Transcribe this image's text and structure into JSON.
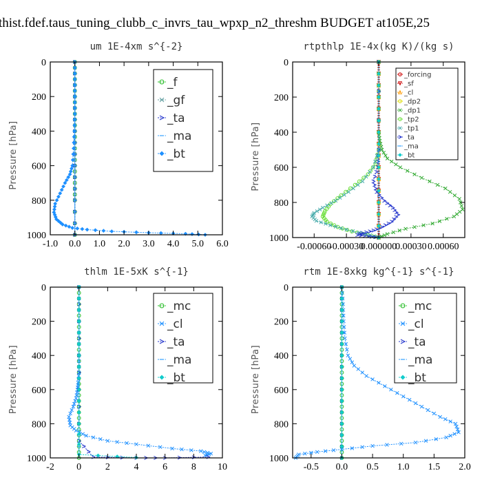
{
  "page_title": "thist.fdef.taus_tuning_clubb_c_invrs_tau_wpxp_n2_threshm  BUDGET at105E,25",
  "chart_data": [
    {
      "type": "line",
      "title": "um  1E-4xm s^{-2}",
      "ylabel": "Pressure [hPa]",
      "ylim": [
        1000,
        0
      ],
      "xlim": [
        -1.0,
        6.0
      ],
      "xticks": [
        "-1.0",
        "0.0",
        "1.0",
        "2.0",
        "3.0",
        "4.0",
        "5.0",
        "6.0"
      ],
      "xtick_values": [
        -1,
        0,
        1,
        2,
        3,
        4,
        5,
        6
      ],
      "yticks": [
        "0",
        "200",
        "400",
        "600",
        "800",
        "1000"
      ],
      "ytick_values": [
        0,
        200,
        400,
        600,
        800,
        1000
      ],
      "legend": "top-right",
      "legend_size": "large",
      "series": [
        {
          "name": "_f",
          "color": "#22bb22",
          "marker": "o",
          "x": [
            0,
            0,
            0,
            0,
            0,
            0,
            0,
            0,
            0,
            0
          ],
          "y": [
            0,
            100,
            200,
            300,
            400,
            500,
            600,
            700,
            800,
            1000
          ]
        },
        {
          "name": "_gf",
          "color": "#5f9ea0",
          "marker": "x",
          "x": [
            0,
            0,
            0,
            0,
            0,
            0,
            0,
            0,
            0,
            0
          ],
          "y": [
            0,
            100,
            200,
            300,
            400,
            500,
            600,
            700,
            800,
            1000
          ]
        },
        {
          "name": "_ta",
          "color": "#2233cc",
          "marker": ">",
          "x": [
            0,
            0,
            0,
            0,
            0,
            0
          ],
          "y": [
            0,
            200,
            400,
            600,
            800,
            1000
          ]
        },
        {
          "name": "_ma",
          "color": "#33a0ff",
          "marker": "-",
          "x": [
            0,
            0,
            0,
            0,
            0,
            0
          ],
          "y": [
            0,
            200,
            400,
            600,
            800,
            1000
          ]
        },
        {
          "name": "_bt",
          "color": "#1e90ff",
          "marker": "d",
          "x": [
            0.0,
            0.0,
            0.0,
            0.0,
            -0.02,
            -0.05,
            -0.1,
            -0.2,
            -0.4,
            -0.6,
            -0.8,
            -0.85,
            -0.75,
            -0.5,
            -0.1,
            0.5,
            1.5,
            3.0,
            4.5,
            5.3
          ],
          "y": [
            0,
            100,
            200,
            300,
            400,
            500,
            600,
            650,
            700,
            760,
            820,
            870,
            910,
            940,
            960,
            970,
            980,
            988,
            994,
            1000
          ]
        }
      ]
    },
    {
      "type": "line",
      "title": "rtpthlp  1E-4x(kg K)/(kg s)",
      "ylabel": "Pressure [hPa]",
      "ylim": [
        1000,
        0
      ],
      "xlim": [
        -0.0008,
        0.0008
      ],
      "xticks": [
        "-0.00060",
        "-0.00030",
        "0.000000",
        "0.00030",
        "0.00060"
      ],
      "xtick_values": [
        -0.0006,
        -0.0003,
        0.0,
        0.0003,
        0.0006
      ],
      "yticks": [
        "0",
        "200",
        "400",
        "600",
        "800",
        "1000"
      ],
      "ytick_values": [
        0,
        200,
        400,
        600,
        800,
        1000
      ],
      "legend": "top-right",
      "legend_size": "small",
      "series": [
        {
          "name": "_forcing",
          "color": "#cc0000",
          "marker": "o",
          "x": [
            0,
            0,
            0,
            0,
            0,
            0
          ],
          "y": [
            0,
            200,
            400,
            600,
            800,
            1000
          ]
        },
        {
          "name": "_sf",
          "color": "#cc0000",
          "marker": "v",
          "x": [
            0,
            0,
            0,
            0,
            0,
            0
          ],
          "y": [
            0,
            200,
            400,
            600,
            800,
            1000
          ]
        },
        {
          "name": "_cl",
          "color": "#ff9900",
          "marker": "^",
          "x": [
            0,
            0,
            0,
            0,
            0,
            0
          ],
          "y": [
            0,
            200,
            400,
            600,
            800,
            1000
          ]
        },
        {
          "name": "_dp2",
          "color": "#dddd00",
          "marker": "o",
          "x": [
            0,
            0,
            0,
            0,
            0,
            0
          ],
          "y": [
            0,
            200,
            400,
            600,
            800,
            1000
          ]
        },
        {
          "name": "_dp1",
          "color": "#33aa33",
          "marker": "x",
          "x": [
            0.0,
            0.0,
            0.0,
            1e-05,
            3e-05,
            8e-05,
            0.0002,
            0.0004,
            0.00062,
            0.00075,
            0.00078,
            0.0007,
            0.0005,
            0.00025,
            8e-05,
            0.0
          ],
          "y": [
            0,
            200,
            400,
            450,
            500,
            550,
            600,
            660,
            720,
            780,
            840,
            880,
            920,
            950,
            980,
            1000
          ]
        },
        {
          "name": "_tp2",
          "color": "#66dd33",
          "marker": "o",
          "x": [
            0.0,
            0.0,
            -3e-05,
            -0.0001,
            -0.00022,
            -0.00035,
            -0.00045,
            -0.0005,
            -0.00052,
            -0.00048,
            -0.00038,
            -0.00025,
            -0.0001,
            0.0
          ],
          "y": [
            0,
            500,
            580,
            640,
            700,
            760,
            810,
            850,
            880,
            910,
            940,
            965,
            985,
            1000
          ]
        },
        {
          "name": "_tp1",
          "color": "#44aaaa",
          "marker": "x",
          "x": [
            0.0,
            0.0,
            -5e-05,
            -0.00015,
            -0.00028,
            -0.0004,
            -0.00052,
            -0.0006,
            -0.00062,
            -0.00058,
            -0.00045,
            -0.0003,
            -0.00012,
            0.0
          ],
          "y": [
            0,
            500,
            600,
            680,
            740,
            790,
            830,
            860,
            880,
            905,
            930,
            955,
            980,
            1000
          ]
        },
        {
          "name": "_ta",
          "color": "#2233cc",
          "marker": ">",
          "x": [
            0.0,
            0.0,
            -1e-05,
            -5e-05,
            -2e-05,
            5e-05,
            0.00013,
            0.00018,
            0.00012,
            3e-05,
            -5e-05,
            -0.00015,
            -0.0002,
            -0.0001,
            0.0
          ],
          "y": [
            0,
            500,
            600,
            680,
            740,
            790,
            830,
            870,
            910,
            940,
            960,
            975,
            985,
            993,
            1000
          ]
        },
        {
          "name": "_ma",
          "color": "#33a0ff",
          "marker": "-",
          "x": [
            0,
            0,
            0,
            0,
            0,
            0
          ],
          "y": [
            0,
            200,
            400,
            600,
            800,
            1000
          ]
        },
        {
          "name": "_bt",
          "color": "#11cccc",
          "marker": "d",
          "x": [
            0,
            0,
            0,
            0,
            0,
            0
          ],
          "y": [
            0,
            200,
            400,
            600,
            800,
            1000
          ]
        }
      ]
    },
    {
      "type": "line",
      "title": "thlm  1E-5xK s^{-1}",
      "ylabel": "Pressure [hPa]",
      "ylim": [
        1000,
        0
      ],
      "xlim": [
        -2,
        10
      ],
      "xticks": [
        "-2",
        "0",
        "2",
        "4",
        "6",
        "8",
        "10"
      ],
      "xtick_values": [
        -2,
        0,
        2,
        4,
        6,
        8,
        10
      ],
      "yticks": [
        "0",
        "200",
        "400",
        "600",
        "800",
        "1000"
      ],
      "ytick_values": [
        0,
        200,
        400,
        600,
        800,
        1000
      ],
      "legend": "top-right",
      "legend_size": "large",
      "series": [
        {
          "name": "_mc",
          "color": "#22bb22",
          "marker": "o",
          "x": [
            0,
            0,
            0,
            0,
            0,
            0,
            0,
            0,
            0,
            0,
            0
          ],
          "y": [
            0,
            100,
            200,
            300,
            400,
            500,
            600,
            700,
            800,
            900,
            1000
          ]
        },
        {
          "name": "_cl",
          "color": "#1e90ff",
          "marker": "x",
          "x": [
            0.0,
            0.0,
            0.0,
            0.0,
            -0.05,
            -0.1,
            -0.2,
            -0.4,
            -0.7,
            -0.6,
            -0.2,
            0.5,
            2.0,
            4.0,
            6.5,
            8.5,
            9.2,
            8.8
          ],
          "y": [
            0,
            200,
            400,
            500,
            560,
            600,
            650,
            700,
            760,
            810,
            840,
            870,
            900,
            920,
            945,
            960,
            975,
            985
          ]
        },
        {
          "name": "_ta",
          "color": "#2233cc",
          "marker": ">",
          "x": [
            0,
            0,
            0,
            0,
            1.0,
            4.0,
            6.0,
            9.0
          ],
          "y": [
            0,
            300,
            600,
            900,
            995,
            1000,
            1000,
            995
          ]
        },
        {
          "name": "_ma",
          "color": "#33a0ff",
          "marker": "-",
          "x": [
            0,
            0,
            0,
            0,
            0,
            0
          ],
          "y": [
            0,
            200,
            400,
            600,
            800,
            1000
          ]
        },
        {
          "name": "_bt",
          "color": "#11cccc",
          "marker": "d",
          "x": [
            0,
            0,
            0,
            0,
            0,
            0,
            4.0
          ],
          "y": [
            0,
            200,
            400,
            600,
            800,
            980,
            998
          ]
        }
      ]
    },
    {
      "type": "line",
      "title": "rtm  1E-8xkg kg^{-1} s^{-1}",
      "ylabel": "Pressure [hPa]",
      "ylim": [
        1000,
        0
      ],
      "xlim": [
        -0.8,
        2.0
      ],
      "xticks": [
        "-0.5",
        "0.0",
        "0.5",
        "1.0",
        "1.5",
        "2.0"
      ],
      "xtick_values": [
        -0.5,
        0.0,
        0.5,
        1.0,
        1.5,
        2.0
      ],
      "yticks": [
        "0",
        "200",
        "400",
        "600",
        "800",
        "1000"
      ],
      "ytick_values": [
        0,
        200,
        400,
        600,
        800,
        1000
      ],
      "legend": "top-right",
      "legend_size": "large",
      "series": [
        {
          "name": "_mc",
          "color": "#22bb22",
          "marker": "o",
          "x": [
            0,
            0,
            0,
            0,
            0,
            0,
            0,
            0,
            0,
            0,
            0
          ],
          "y": [
            0,
            100,
            200,
            300,
            400,
            500,
            600,
            700,
            800,
            900,
            1000
          ]
        },
        {
          "name": "_cl",
          "color": "#1e90ff",
          "marker": "x",
          "x": [
            0.0,
            0.02,
            0.03,
            0.05,
            0.1,
            0.2,
            0.4,
            0.7,
            1.0,
            1.3,
            1.6,
            1.85,
            1.9,
            1.7,
            1.2,
            0.5,
            0.0,
            -0.4,
            -0.7,
            -0.75
          ],
          "y": [
            0,
            100,
            200,
            300,
            400,
            460,
            520,
            580,
            640,
            700,
            760,
            800,
            850,
            880,
            910,
            930,
            950,
            965,
            980,
            1000
          ]
        },
        {
          "name": "_ta",
          "color": "#2233cc",
          "marker": ">",
          "x": [
            0,
            0,
            0,
            0,
            0,
            0
          ],
          "y": [
            0,
            200,
            400,
            600,
            800,
            1000
          ]
        },
        {
          "name": "_ma",
          "color": "#33a0ff",
          "marker": "-",
          "x": [
            0,
            0,
            0,
            0,
            0,
            0
          ],
          "y": [
            0,
            200,
            400,
            600,
            800,
            1000
          ]
        },
        {
          "name": "_bt",
          "color": "#11cccc",
          "marker": "d",
          "x": [
            0,
            0,
            0,
            0,
            0,
            0
          ],
          "y": [
            0,
            200,
            400,
            600,
            800,
            1000
          ]
        }
      ]
    }
  ]
}
